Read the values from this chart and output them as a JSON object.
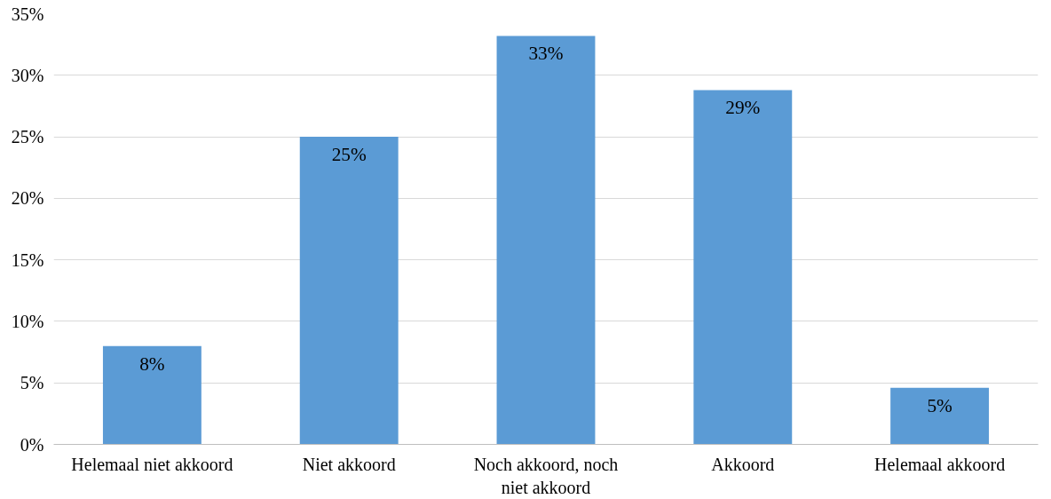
{
  "chart_data": {
    "type": "bar",
    "categories": [
      "Helemaal niet akkoord",
      "Niet akkoord",
      "Noch akkoord, noch niet akkoord",
      "Akkoord",
      "Helemaal akkoord"
    ],
    "values": [
      8,
      25,
      33.2,
      28.8,
      4.6
    ],
    "value_labels": [
      "8%",
      "25%",
      "33%",
      "29%",
      "5%"
    ],
    "color": "#5b9bd5",
    "ylim": [
      0,
      35
    ],
    "yticks": [
      {
        "value": 0,
        "label": "0%"
      },
      {
        "value": 5,
        "label": "5%"
      },
      {
        "value": 10,
        "label": "10%"
      },
      {
        "value": 15,
        "label": "15%"
      },
      {
        "value": 20,
        "label": "20%"
      },
      {
        "value": 25,
        "label": "25%"
      },
      {
        "value": 30,
        "label": "30%"
      },
      {
        "value": 35,
        "label": "35%"
      }
    ],
    "grid": "y"
  }
}
